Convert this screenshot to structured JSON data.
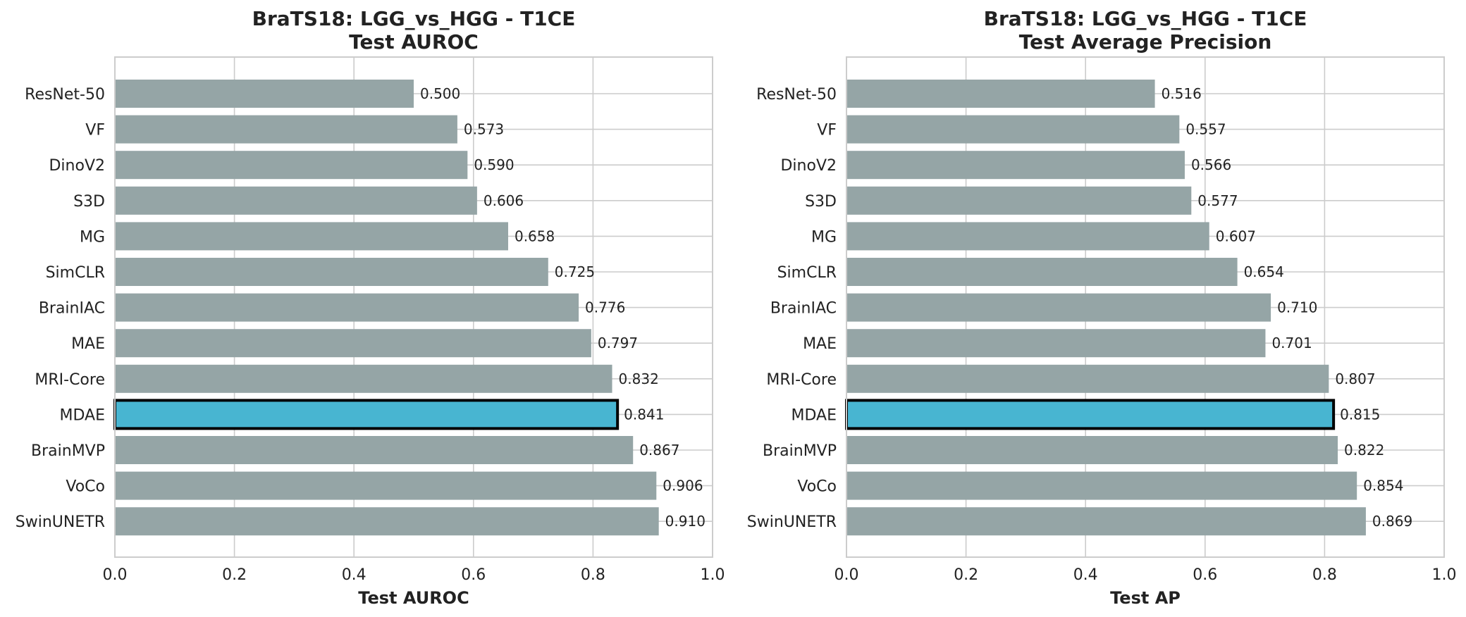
{
  "colors": {
    "bar": "#95a5a6",
    "highlight": "#48b5d1",
    "highlight_edge": "#000000",
    "grid": "#cccccc",
    "frame": "#cccccc",
    "text": "#222222"
  },
  "chart_data": [
    {
      "type": "bar",
      "orientation": "horizontal",
      "title": "BraTS18: LGG_vs_HGG - T1CE",
      "subtitle": "Test AUROC",
      "xlabel": "Test AUROC",
      "ylabel": "",
      "xlim": [
        0,
        1.0
      ],
      "xticks": [
        "0.0",
        "0.2",
        "0.4",
        "0.6",
        "0.8",
        "1.0"
      ],
      "grid": true,
      "highlight": "MDAE",
      "categories": [
        "ResNet-50",
        "VF",
        "DinoV2",
        "S3D",
        "MG",
        "SimCLR",
        "BrainIAC",
        "MAE",
        "MRI-Core",
        "MDAE",
        "BrainMVP",
        "VoCo",
        "SwinUNETR"
      ],
      "values": [
        0.5,
        0.573,
        0.59,
        0.606,
        0.658,
        0.725,
        0.776,
        0.797,
        0.832,
        0.841,
        0.867,
        0.906,
        0.91
      ],
      "value_labels": [
        "0.500",
        "0.573",
        "0.590",
        "0.606",
        "0.658",
        "0.725",
        "0.776",
        "0.797",
        "0.832",
        "0.841",
        "0.867",
        "0.906",
        "0.910"
      ]
    },
    {
      "type": "bar",
      "orientation": "horizontal",
      "title": "BraTS18: LGG_vs_HGG - T1CE",
      "subtitle": "Test Average Precision",
      "xlabel": "Test AP",
      "ylabel": "",
      "xlim": [
        0,
        1.0
      ],
      "xticks": [
        "0.0",
        "0.2",
        "0.4",
        "0.6",
        "0.8",
        "1.0"
      ],
      "grid": true,
      "highlight": "MDAE",
      "categories": [
        "ResNet-50",
        "VF",
        "DinoV2",
        "S3D",
        "MG",
        "SimCLR",
        "BrainIAC",
        "MAE",
        "MRI-Core",
        "MDAE",
        "BrainMVP",
        "VoCo",
        "SwinUNETR"
      ],
      "values": [
        0.516,
        0.557,
        0.566,
        0.577,
        0.607,
        0.654,
        0.71,
        0.701,
        0.807,
        0.815,
        0.822,
        0.854,
        0.869
      ],
      "value_labels": [
        "0.516",
        "0.557",
        "0.566",
        "0.577",
        "0.607",
        "0.654",
        "0.710",
        "0.701",
        "0.807",
        "0.815",
        "0.822",
        "0.854",
        "0.869"
      ]
    }
  ]
}
